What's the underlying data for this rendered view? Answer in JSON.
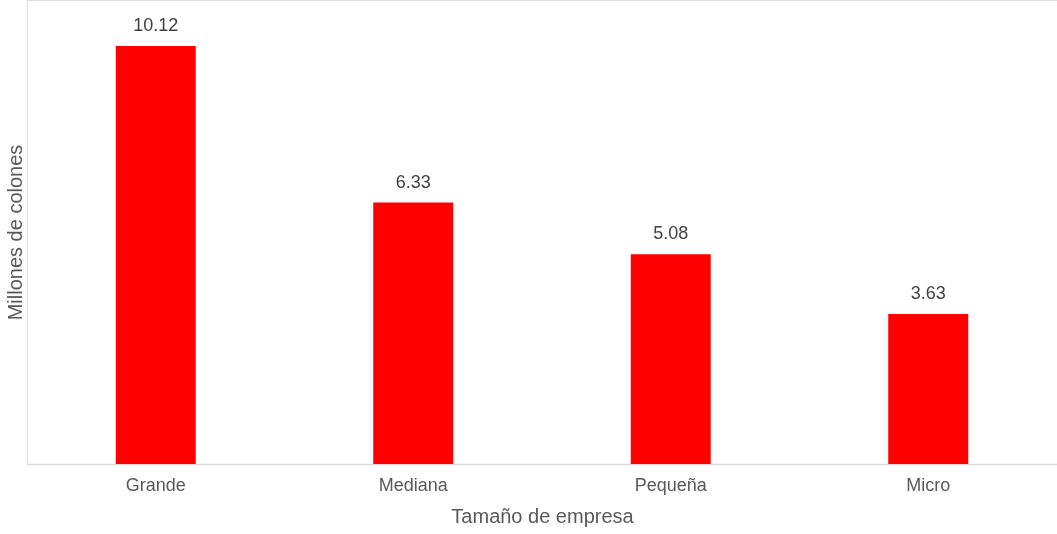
{
  "chart_data": {
    "type": "bar",
    "xlabel": "Tamaño de empresa",
    "ylabel": "Millones de colones",
    "categories": [
      "Grande",
      "Mediana",
      "Pequeña",
      "Micro"
    ],
    "values": [
      10.12,
      6.33,
      5.08,
      3.63
    ],
    "color": "#ff0000",
    "data_labels": true,
    "grid": false
  }
}
